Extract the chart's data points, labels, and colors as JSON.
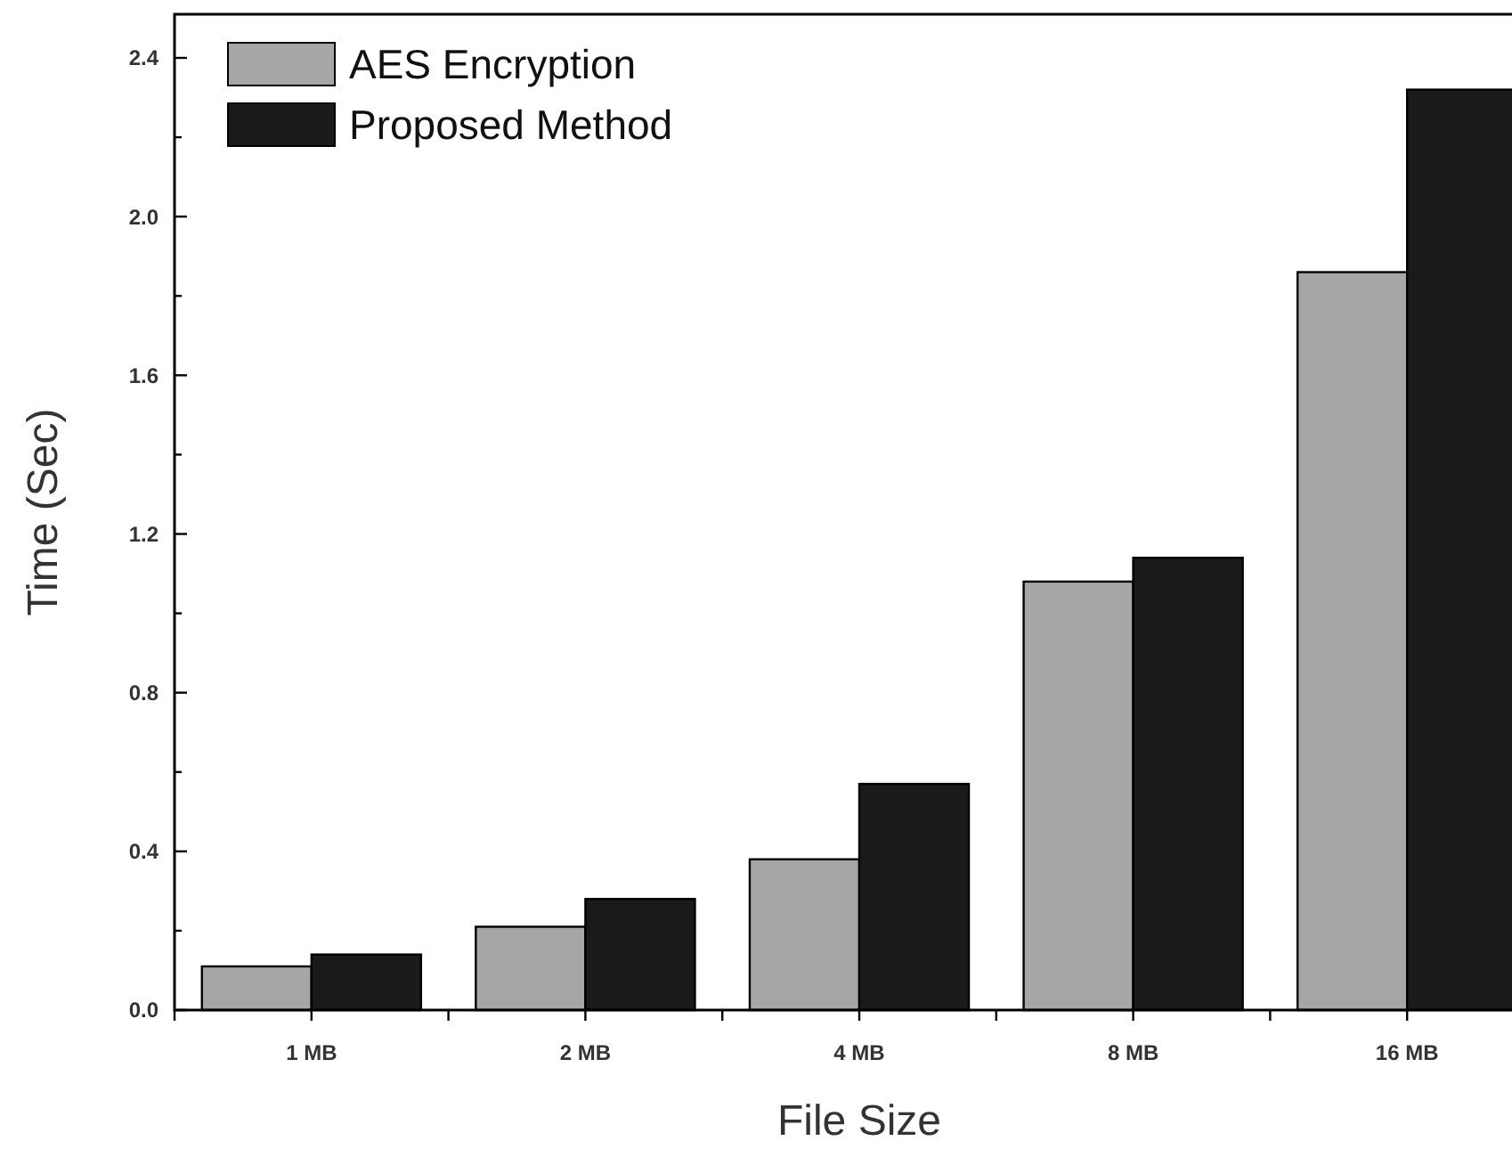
{
  "chart_data": {
    "type": "bar",
    "xlabel": "File Size",
    "ylabel": "Time (Sec)",
    "categories": [
      "1 MB",
      "2 MB",
      "4 MB",
      "8 MB",
      "16 MB"
    ],
    "series": [
      {
        "name": "AES Encryption",
        "color": "#a6a6a6",
        "values": [
          0.11,
          0.21,
          0.38,
          1.08,
          1.86
        ]
      },
      {
        "name": "Proposed Method",
        "color": "#1a1a1a",
        "values": [
          0.14,
          0.28,
          0.57,
          1.14,
          2.32
        ]
      }
    ],
    "ylim": [
      0,
      2.51
    ],
    "yticks": [
      {
        "value": 0,
        "label": "0.0"
      },
      {
        "value": 0.2,
        "label": null
      },
      0.4,
      {
        "value": 0.6,
        "label": null
      },
      0.8,
      {
        "value": 1.0,
        "label": null
      },
      1.2,
      {
        "value": 1.4,
        "label": null
      },
      1.6,
      {
        "value": 1.8,
        "label": null
      },
      {
        "value": 2.0,
        "label": "2.0"
      },
      {
        "value": 2.2,
        "label": null
      },
      2.4
    ],
    "grid": false,
    "legend": "top left"
  }
}
